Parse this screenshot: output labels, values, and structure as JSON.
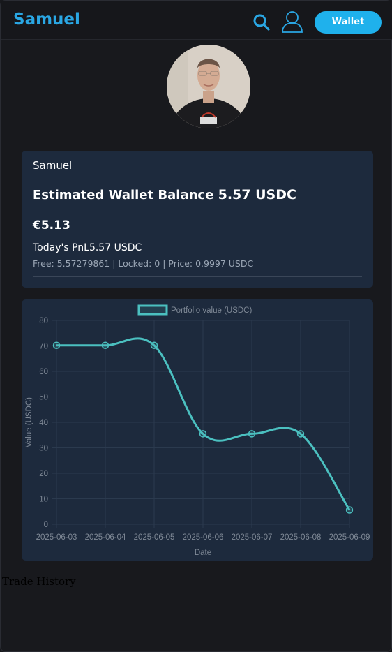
{
  "header": {
    "brand": "Samuel",
    "wallet_label": "Wallet",
    "search_icon": "search-icon",
    "user_icon": "user-icon",
    "accent_color": "#1fb1ec"
  },
  "profile": {
    "name": "Samuel"
  },
  "balance": {
    "label": "Estimated Wallet Balance",
    "amount": "5.57 USDC",
    "eur": "€5.13",
    "pnl": "Today's PnL5.57 USDC",
    "details": "Free: 5.57279861 | Locked: 0 | Price: 0.9997 USDC"
  },
  "trade_history": {
    "title": "Trade History"
  },
  "chart_data": {
    "type": "line",
    "legend_label": "Portfolio value (USDC)",
    "xlabel": "Date",
    "ylabel": "Value (USDC)",
    "x": [
      "2025-06-03",
      "2025-06-04",
      "2025-06-05",
      "2025-06-06",
      "2025-06-07",
      "2025-06-08",
      "2025-06-09"
    ],
    "series": [
      {
        "name": "Portfolio value (USDC)",
        "values": [
          70.2,
          70.2,
          70.2,
          35.5,
          35.5,
          35.5,
          5.6
        ]
      }
    ],
    "ylim": [
      0,
      80
    ],
    "yticks": [
      0,
      10,
      20,
      30,
      40,
      50,
      60,
      70,
      80
    ],
    "grid": true,
    "legend_position": "top",
    "line_color": "#4bc0c0"
  }
}
